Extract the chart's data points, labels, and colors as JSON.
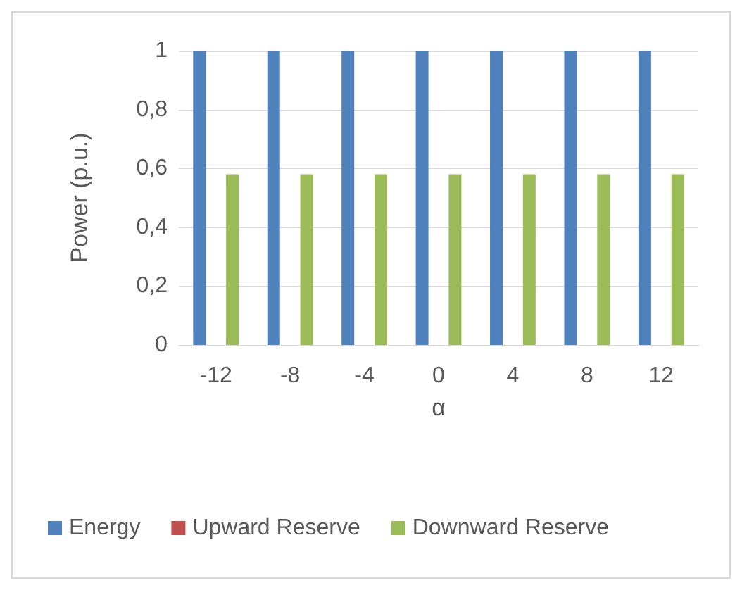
{
  "chart_data": {
    "type": "bar",
    "xlabel": "α",
    "ylabel": "Power (p.u.)",
    "categories": [
      "-12",
      "-8",
      "-4",
      "0",
      "4",
      "8",
      "12"
    ],
    "series": [
      {
        "name": "Energy",
        "color": "#4f81bd",
        "values": [
          1,
          1,
          1,
          1,
          1,
          1,
          1
        ]
      },
      {
        "name": "Upward Reserve",
        "color": "#c0504d",
        "values": [
          0,
          0,
          0,
          0,
          0,
          0,
          0
        ]
      },
      {
        "name": "Downward Reserve",
        "color": "#9bbb59",
        "values": [
          0.58,
          0.58,
          0.58,
          0.58,
          0.58,
          0.58,
          0.58
        ]
      }
    ],
    "ylim": [
      0,
      1
    ],
    "yticks": [
      0,
      {
        "value": 0.2,
        "label": "0,2"
      },
      {
        "value": 0.4,
        "label": "0,4"
      },
      {
        "value": 0.6,
        "label": "0,6"
      },
      {
        "value": 0.8,
        "label": "0,8"
      },
      1
    ],
    "grid": "y",
    "legend": "bottom"
  }
}
